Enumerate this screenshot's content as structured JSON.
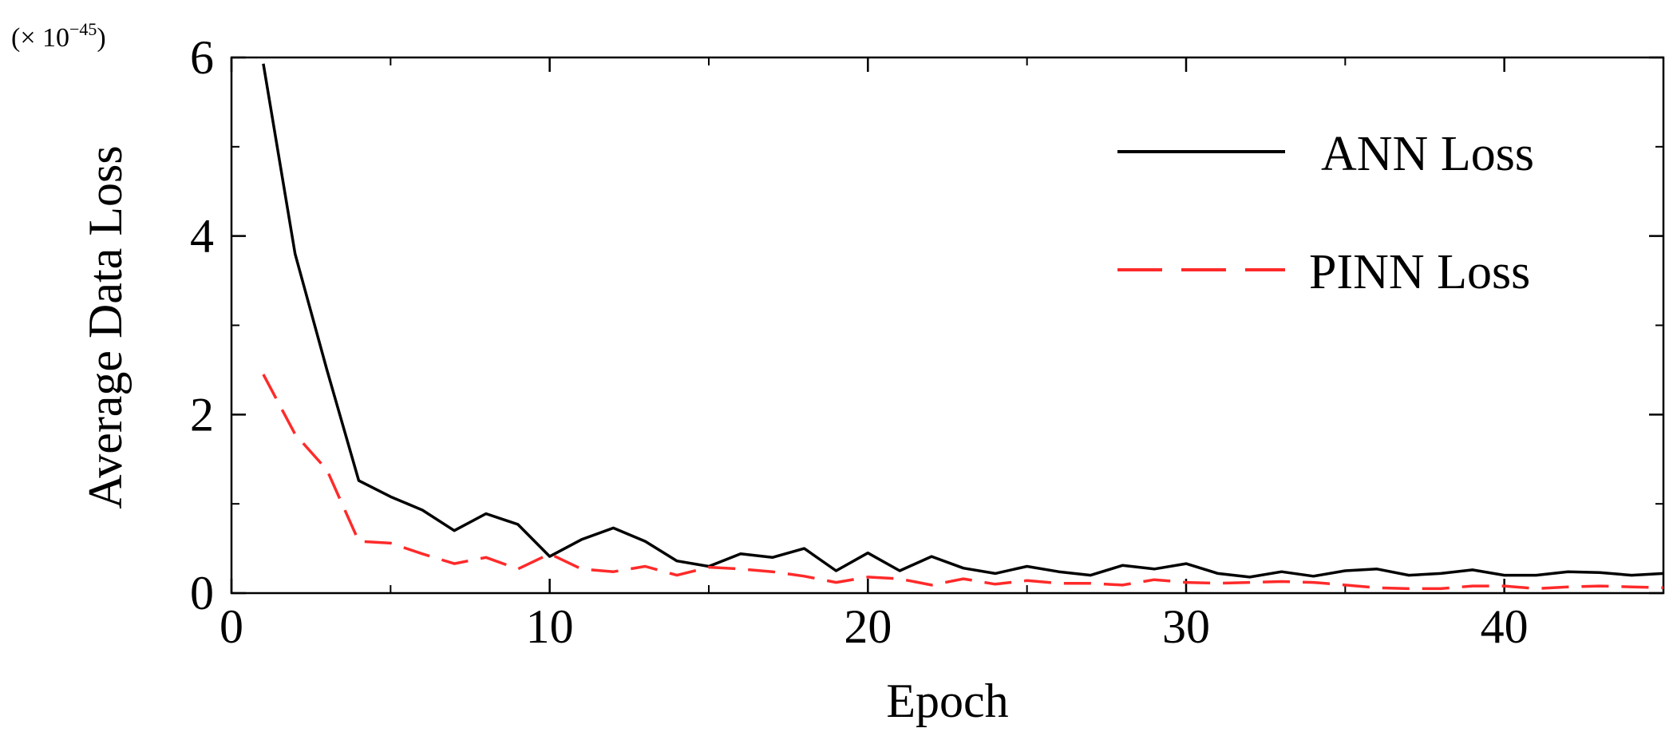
{
  "chart_data": {
    "type": "line",
    "title": "",
    "xlabel": "Epoch",
    "ylabel": "Average Data Loss",
    "y_multiplier_label": "(× 10",
    "y_multiplier_exponent": "−45",
    "y_multiplier_close": ")",
    "xlim": [
      0,
      45
    ],
    "ylim": [
      0,
      6
    ],
    "x_ticks": [
      0,
      10,
      20,
      30,
      40
    ],
    "x_tick_labels": [
      "0",
      "10",
      "20",
      "30",
      "40"
    ],
    "y_ticks": [
      0,
      2,
      4,
      6
    ],
    "y_tick_labels": [
      "0",
      "2",
      "4",
      "6"
    ],
    "y_minor_ticks": [
      1,
      3,
      5
    ],
    "grid": false,
    "legend_position": "top-right",
    "x": [
      1,
      2,
      3,
      4,
      5,
      6,
      7,
      8,
      9,
      10,
      11,
      12,
      13,
      14,
      15,
      16,
      17,
      18,
      19,
      20,
      21,
      22,
      23,
      24,
      25,
      26,
      27,
      28,
      29,
      30,
      31,
      32,
      33,
      34,
      35,
      36,
      37,
      38,
      39,
      40,
      41,
      42,
      43,
      44,
      45
    ],
    "series": [
      {
        "name": "ANN Loss",
        "color": "#000000",
        "style": "solid",
        "values": [
          5.93,
          3.8,
          2.5,
          1.26,
          1.08,
          0.93,
          0.7,
          0.89,
          0.77,
          0.41,
          0.6,
          0.73,
          0.58,
          0.36,
          0.3,
          0.44,
          0.4,
          0.5,
          0.25,
          0.45,
          0.25,
          0.41,
          0.28,
          0.22,
          0.3,
          0.24,
          0.2,
          0.31,
          0.27,
          0.33,
          0.22,
          0.18,
          0.24,
          0.19,
          0.25,
          0.27,
          0.2,
          0.22,
          0.26,
          0.2,
          0.2,
          0.24,
          0.23,
          0.2,
          0.22
        ]
      },
      {
        "name": "PINN Loss",
        "color": "#ff2a2a",
        "style": "dashed",
        "values": [
          2.45,
          1.78,
          1.38,
          0.58,
          0.56,
          0.44,
          0.33,
          0.4,
          0.27,
          0.44,
          0.27,
          0.24,
          0.3,
          0.2,
          0.29,
          0.27,
          0.24,
          0.19,
          0.12,
          0.18,
          0.16,
          0.09,
          0.16,
          0.1,
          0.14,
          0.11,
          0.11,
          0.09,
          0.15,
          0.12,
          0.11,
          0.12,
          0.13,
          0.12,
          0.09,
          0.06,
          0.05,
          0.05,
          0.08,
          0.08,
          0.05,
          0.07,
          0.08,
          0.07,
          0.06
        ]
      }
    ]
  }
}
